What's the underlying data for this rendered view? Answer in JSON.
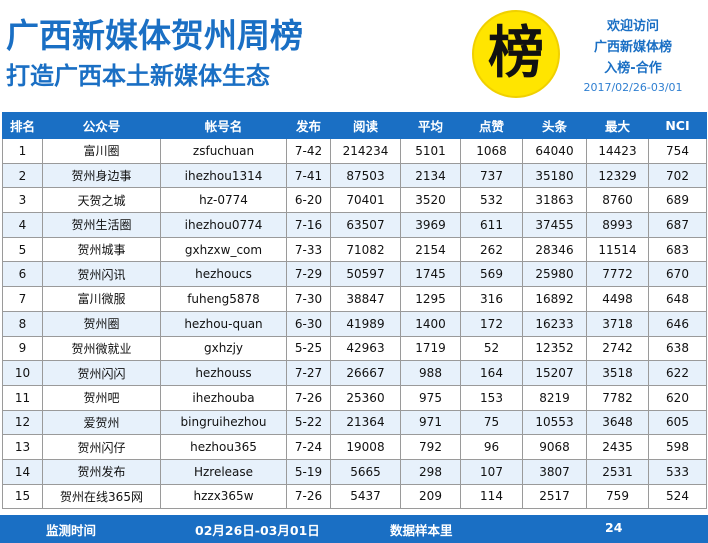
{
  "header": {
    "title": "广西新媒体贺州周榜",
    "subtitle": "打造广西本土新媒体生态",
    "badge_char": "榜",
    "promo_line1": "欢迎访问",
    "promo_line2": "广西新媒体榜",
    "promo_line3": "入榜-合作",
    "date_range": "2017/02/26-03/01"
  },
  "table": {
    "columns": [
      "排名",
      "公众号",
      "帐号名",
      "发布",
      "阅读",
      "平均",
      "点赞",
      "头条",
      "最大",
      "NCI"
    ],
    "rows": [
      [
        "1",
        "富川圈",
        "zsfuchuan",
        "7-42",
        "214234",
        "5101",
        "1068",
        "64040",
        "14423",
        "754"
      ],
      [
        "2",
        "贺州身边事",
        "ihezhou1314",
        "7-41",
        "87503",
        "2134",
        "737",
        "35180",
        "12329",
        "702"
      ],
      [
        "3",
        "天贺之城",
        "hz-0774",
        "6-20",
        "70401",
        "3520",
        "532",
        "31863",
        "8760",
        "689"
      ],
      [
        "4",
        "贺州生活圈",
        "ihezhou0774",
        "7-16",
        "63507",
        "3969",
        "611",
        "37455",
        "8993",
        "687"
      ],
      [
        "5",
        "贺州城事",
        "gxhzxw_com",
        "7-33",
        "71082",
        "2154",
        "262",
        "28346",
        "11514",
        "683"
      ],
      [
        "6",
        "贺州闪讯",
        "hezhoucs",
        "7-29",
        "50597",
        "1745",
        "569",
        "25980",
        "7772",
        "670"
      ],
      [
        "7",
        "富川微服",
        "fuheng5878",
        "7-30",
        "38847",
        "1295",
        "316",
        "16892",
        "4498",
        "648"
      ],
      [
        "8",
        "贺州圈",
        "hezhou-quan",
        "6-30",
        "41989",
        "1400",
        "172",
        "16233",
        "3718",
        "646"
      ],
      [
        "9",
        "贺州微就业",
        "gxhzjy",
        "5-25",
        "42963",
        "1719",
        "52",
        "12352",
        "2742",
        "638"
      ],
      [
        "10",
        "贺州闪闪",
        "hezhouss",
        "7-27",
        "26667",
        "988",
        "164",
        "15207",
        "3518",
        "622"
      ],
      [
        "11",
        "贺州吧",
        "ihezhouba",
        "7-26",
        "25360",
        "975",
        "153",
        "8219",
        "7782",
        "620"
      ],
      [
        "12",
        "爱贺州",
        "bingruihezhou",
        "5-22",
        "21364",
        "971",
        "75",
        "10553",
        "3648",
        "605"
      ],
      [
        "13",
        "贺州闪仔",
        "hezhou365",
        "7-24",
        "19008",
        "792",
        "96",
        "9068",
        "2435",
        "598"
      ],
      [
        "14",
        "贺州发布",
        "Hzrelease",
        "5-19",
        "5665",
        "298",
        "107",
        "3807",
        "2531",
        "533"
      ],
      [
        "15",
        "贺州在线365网",
        "hzzx365w",
        "7-26",
        "5437",
        "209",
        "114",
        "2517",
        "759",
        "524"
      ]
    ]
  },
  "footer": {
    "label_period": "监测时间",
    "period": "02月26日-03月01日",
    "label_sample": "数据样本里",
    "sample_count": "24"
  }
}
